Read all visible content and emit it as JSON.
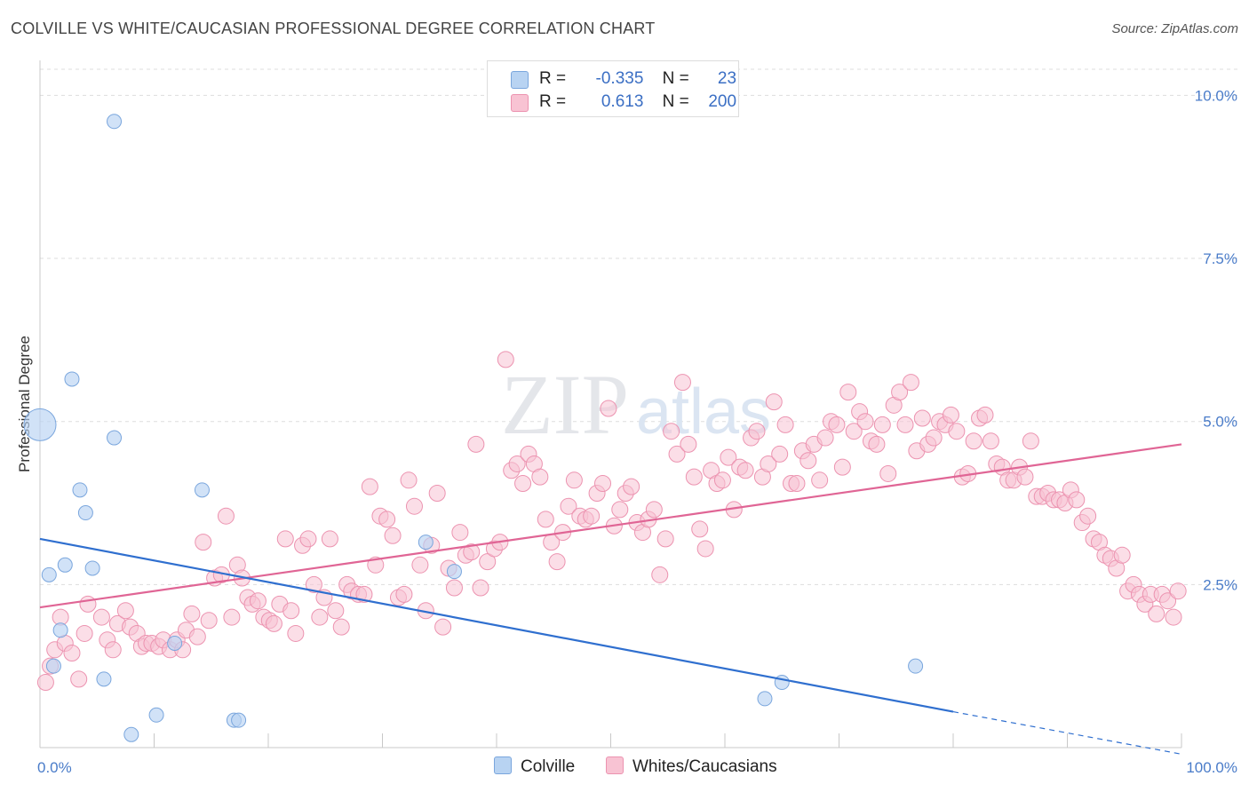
{
  "header": {
    "title": "COLVILLE VS WHITE/CAUCASIAN PROFESSIONAL DEGREE CORRELATION CHART",
    "source": "Source: ZipAtlas.com"
  },
  "colors": {
    "blue_fill": "#b8d3f2",
    "blue_stroke": "#7aa6dd",
    "blue_line": "#2f6fcf",
    "pink_fill": "#f8c3d3",
    "pink_stroke": "#ec93b0",
    "pink_line": "#e06595",
    "grid": "#dddddd"
  },
  "stats": [
    {
      "r_label": "R =",
      "r_value": "-0.335",
      "n_label": "N =",
      "n_value": "23"
    },
    {
      "r_label": "R =",
      "r_value": "0.613",
      "n_label": "N =",
      "n_value": "200"
    }
  ],
  "watermark": {
    "zip": "ZIP",
    "atlas": "atlas"
  },
  "chart_data": {
    "type": "scatter",
    "title": "COLVILLE VS WHITE/CAUCASIAN PROFESSIONAL DEGREE CORRELATION CHART",
    "ylabel": "Professional Degree",
    "xlim": [
      0,
      100
    ],
    "ylim": [
      0,
      10.4
    ],
    "x_tick_labels": [
      "0.0%",
      "100.0%"
    ],
    "y_ticks": [
      2.5,
      5.0,
      7.5,
      10.0
    ],
    "y_tick_labels": [
      "2.5%",
      "5.0%",
      "7.5%",
      "10.0%"
    ],
    "grid": "horizontal dashed",
    "legend": "bottom-center",
    "series": [
      {
        "name": "Colville",
        "trend": {
          "x": [
            0,
            80
          ],
          "y": [
            3.2,
            0.55
          ],
          "dashed_to": [
            100,
            -0.1
          ]
        },
        "points": [
          [
            0.0,
            4.95
          ],
          [
            6.5,
            9.6
          ],
          [
            2.8,
            5.65
          ],
          [
            6.5,
            4.75
          ],
          [
            3.5,
            3.95
          ],
          [
            14.2,
            3.95
          ],
          [
            4.0,
            3.6
          ],
          [
            2.2,
            2.8
          ],
          [
            0.8,
            2.65
          ],
          [
            4.6,
            2.75
          ],
          [
            33.8,
            3.15
          ],
          [
            36.3,
            2.7
          ],
          [
            1.8,
            1.8
          ],
          [
            11.8,
            1.6
          ],
          [
            1.2,
            1.25
          ],
          [
            5.6,
            1.05
          ],
          [
            10.2,
            0.5
          ],
          [
            8.0,
            0.2
          ],
          [
            17.0,
            0.42
          ],
          [
            17.4,
            0.42
          ],
          [
            63.5,
            0.75
          ],
          [
            65.0,
            1.0
          ],
          [
            76.7,
            1.25
          ]
        ]
      },
      {
        "name": "Whites/Caucasians",
        "trend": {
          "x": [
            0,
            100
          ],
          "y": [
            2.15,
            4.65
          ]
        },
        "points": [
          [
            0.5,
            1.0
          ],
          [
            0.9,
            1.25
          ],
          [
            1.3,
            1.5
          ],
          [
            1.8,
            2.0
          ],
          [
            2.2,
            1.6
          ],
          [
            2.8,
            1.45
          ],
          [
            3.4,
            1.05
          ],
          [
            3.9,
            1.75
          ],
          [
            4.2,
            2.2
          ],
          [
            5.4,
            2.0
          ],
          [
            5.9,
            1.65
          ],
          [
            6.4,
            1.5
          ],
          [
            6.8,
            1.9
          ],
          [
            7.5,
            2.1
          ],
          [
            7.9,
            1.85
          ],
          [
            8.5,
            1.75
          ],
          [
            8.9,
            1.55
          ],
          [
            9.3,
            1.6
          ],
          [
            9.8,
            1.6
          ],
          [
            10.4,
            1.55
          ],
          [
            10.8,
            1.65
          ],
          [
            11.4,
            1.5
          ],
          [
            12.0,
            1.65
          ],
          [
            12.5,
            1.5
          ],
          [
            12.8,
            1.8
          ],
          [
            13.3,
            2.05
          ],
          [
            13.8,
            1.7
          ],
          [
            14.3,
            3.15
          ],
          [
            14.8,
            1.95
          ],
          [
            15.3,
            2.6
          ],
          [
            15.9,
            2.65
          ],
          [
            16.3,
            3.55
          ],
          [
            16.8,
            2.0
          ],
          [
            17.3,
            2.8
          ],
          [
            17.7,
            2.6
          ],
          [
            18.2,
            2.3
          ],
          [
            18.6,
            2.2
          ],
          [
            19.1,
            2.25
          ],
          [
            19.6,
            2.0
          ],
          [
            20.1,
            1.95
          ],
          [
            20.5,
            1.9
          ],
          [
            21.0,
            2.2
          ],
          [
            21.5,
            3.2
          ],
          [
            22.0,
            2.1
          ],
          [
            22.4,
            1.75
          ],
          [
            23.0,
            3.1
          ],
          [
            23.5,
            3.2
          ],
          [
            24.0,
            2.5
          ],
          [
            24.5,
            2.0
          ],
          [
            24.9,
            2.3
          ],
          [
            25.4,
            3.2
          ],
          [
            25.9,
            2.1
          ],
          [
            26.4,
            1.85
          ],
          [
            26.9,
            2.5
          ],
          [
            27.3,
            2.4
          ],
          [
            27.9,
            2.35
          ],
          [
            28.4,
            2.35
          ],
          [
            28.9,
            4.0
          ],
          [
            29.4,
            2.8
          ],
          [
            29.8,
            3.55
          ],
          [
            30.4,
            3.5
          ],
          [
            30.9,
            3.25
          ],
          [
            31.4,
            2.3
          ],
          [
            31.9,
            2.35
          ],
          [
            32.3,
            4.1
          ],
          [
            32.8,
            3.7
          ],
          [
            33.3,
            2.8
          ],
          [
            33.8,
            2.1
          ],
          [
            34.3,
            3.1
          ],
          [
            34.8,
            3.9
          ],
          [
            35.3,
            1.85
          ],
          [
            35.8,
            2.75
          ],
          [
            36.3,
            2.45
          ],
          [
            36.8,
            3.3
          ],
          [
            37.3,
            2.95
          ],
          [
            37.8,
            3.0
          ],
          [
            38.2,
            4.65
          ],
          [
            38.6,
            2.45
          ],
          [
            39.2,
            2.85
          ],
          [
            39.8,
            3.05
          ],
          [
            40.3,
            3.15
          ],
          [
            40.8,
            5.95
          ],
          [
            41.3,
            4.25
          ],
          [
            41.8,
            4.35
          ],
          [
            42.3,
            4.05
          ],
          [
            42.8,
            4.5
          ],
          [
            43.3,
            4.35
          ],
          [
            43.8,
            4.15
          ],
          [
            44.3,
            3.5
          ],
          [
            44.8,
            3.15
          ],
          [
            45.3,
            2.85
          ],
          [
            45.8,
            3.3
          ],
          [
            46.3,
            3.7
          ],
          [
            46.8,
            4.1
          ],
          [
            47.3,
            3.55
          ],
          [
            47.8,
            3.5
          ],
          [
            48.3,
            3.55
          ],
          [
            48.8,
            3.9
          ],
          [
            49.3,
            4.05
          ],
          [
            49.8,
            5.2
          ],
          [
            50.3,
            3.4
          ],
          [
            50.8,
            3.65
          ],
          [
            51.3,
            3.9
          ],
          [
            51.8,
            4.0
          ],
          [
            52.3,
            3.45
          ],
          [
            52.8,
            3.3
          ],
          [
            53.3,
            3.5
          ],
          [
            53.8,
            3.65
          ],
          [
            54.3,
            2.65
          ],
          [
            54.8,
            3.2
          ],
          [
            55.3,
            4.85
          ],
          [
            55.8,
            4.5
          ],
          [
            56.3,
            5.6
          ],
          [
            56.8,
            4.65
          ],
          [
            57.3,
            4.15
          ],
          [
            57.8,
            3.35
          ],
          [
            58.3,
            3.05
          ],
          [
            58.8,
            4.25
          ],
          [
            59.3,
            4.05
          ],
          [
            59.8,
            4.1
          ],
          [
            60.3,
            4.45
          ],
          [
            60.8,
            3.65
          ],
          [
            61.3,
            4.3
          ],
          [
            61.8,
            4.25
          ],
          [
            62.3,
            4.75
          ],
          [
            62.8,
            4.85
          ],
          [
            63.3,
            4.15
          ],
          [
            63.8,
            4.35
          ],
          [
            64.3,
            5.3
          ],
          [
            64.8,
            4.5
          ],
          [
            65.3,
            4.95
          ],
          [
            65.8,
            4.05
          ],
          [
            66.3,
            4.05
          ],
          [
            66.8,
            4.55
          ],
          [
            67.3,
            4.4
          ],
          [
            67.8,
            4.65
          ],
          [
            68.3,
            4.1
          ],
          [
            68.8,
            4.75
          ],
          [
            69.3,
            5.0
          ],
          [
            69.8,
            4.95
          ],
          [
            70.3,
            4.3
          ],
          [
            70.8,
            5.45
          ],
          [
            71.3,
            4.85
          ],
          [
            71.8,
            5.15
          ],
          [
            72.3,
            5.0
          ],
          [
            72.8,
            4.7
          ],
          [
            73.3,
            4.65
          ],
          [
            73.8,
            4.95
          ],
          [
            74.3,
            4.2
          ],
          [
            74.8,
            5.25
          ],
          [
            75.3,
            5.45
          ],
          [
            75.8,
            4.95
          ],
          [
            76.3,
            5.6
          ],
          [
            76.8,
            4.55
          ],
          [
            77.3,
            5.05
          ],
          [
            77.8,
            4.65
          ],
          [
            78.3,
            4.75
          ],
          [
            78.8,
            5.0
          ],
          [
            79.3,
            4.95
          ],
          [
            79.8,
            5.1
          ],
          [
            80.3,
            4.85
          ],
          [
            80.8,
            4.15
          ],
          [
            81.3,
            4.2
          ],
          [
            81.8,
            4.7
          ],
          [
            82.3,
            5.05
          ],
          [
            82.8,
            5.1
          ],
          [
            83.3,
            4.7
          ],
          [
            83.8,
            4.35
          ],
          [
            84.3,
            4.3
          ],
          [
            84.8,
            4.1
          ],
          [
            85.3,
            4.1
          ],
          [
            85.8,
            4.3
          ],
          [
            86.3,
            4.15
          ],
          [
            86.8,
            4.7
          ],
          [
            87.3,
            3.85
          ],
          [
            87.8,
            3.85
          ],
          [
            88.3,
            3.9
          ],
          [
            88.8,
            3.8
          ],
          [
            89.3,
            3.8
          ],
          [
            89.8,
            3.75
          ],
          [
            90.3,
            3.95
          ],
          [
            90.8,
            3.8
          ],
          [
            91.3,
            3.45
          ],
          [
            91.8,
            3.55
          ],
          [
            92.3,
            3.2
          ],
          [
            92.8,
            3.15
          ],
          [
            93.3,
            2.95
          ],
          [
            93.8,
            2.9
          ],
          [
            94.3,
            2.75
          ],
          [
            94.8,
            2.95
          ],
          [
            95.3,
            2.4
          ],
          [
            95.8,
            2.5
          ],
          [
            96.3,
            2.35
          ],
          [
            96.8,
            2.2
          ],
          [
            97.3,
            2.35
          ],
          [
            97.8,
            2.05
          ],
          [
            98.3,
            2.35
          ],
          [
            98.8,
            2.25
          ],
          [
            99.3,
            2.0
          ],
          [
            99.7,
            2.4
          ]
        ]
      }
    ]
  }
}
